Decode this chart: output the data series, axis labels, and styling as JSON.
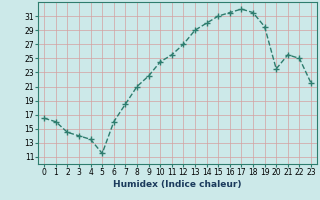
{
  "x": [
    0,
    1,
    2,
    3,
    4,
    5,
    6,
    7,
    8,
    9,
    10,
    11,
    12,
    13,
    14,
    15,
    16,
    17,
    18,
    19,
    20,
    21,
    22,
    23
  ],
  "y": [
    16.5,
    16.0,
    14.5,
    14.0,
    13.5,
    11.5,
    16.0,
    18.5,
    21.0,
    22.5,
    24.5,
    25.5,
    27.0,
    29.0,
    30.0,
    31.0,
    31.5,
    32.0,
    31.5,
    29.5,
    23.5,
    25.5,
    25.0,
    21.5
  ],
  "line_color": "#2e7d6e",
  "marker": "+",
  "markersize": 4,
  "linewidth": 1.0,
  "xlabel": "Humidex (Indice chaleur)",
  "xlim": [
    -0.5,
    23.5
  ],
  "ylim": [
    10,
    33
  ],
  "yticks": [
    11,
    13,
    15,
    17,
    19,
    21,
    23,
    25,
    27,
    29,
    31
  ],
  "xticks": [
    0,
    1,
    2,
    3,
    4,
    5,
    6,
    7,
    8,
    9,
    10,
    11,
    12,
    13,
    14,
    15,
    16,
    17,
    18,
    19,
    20,
    21,
    22,
    23
  ],
  "xtick_labels": [
    "0",
    "1",
    "2",
    "3",
    "4",
    "5",
    "6",
    "7",
    "8",
    "9",
    "10",
    "11",
    "12",
    "13",
    "14",
    "15",
    "16",
    "17",
    "18",
    "19",
    "20",
    "21",
    "22",
    "23"
  ],
  "background_color": "#cce9e9",
  "grid_color": "#d4a0a0",
  "xlabel_fontsize": 6.5,
  "tick_fontsize": 5.5,
  "spine_color": "#2e7d6e"
}
